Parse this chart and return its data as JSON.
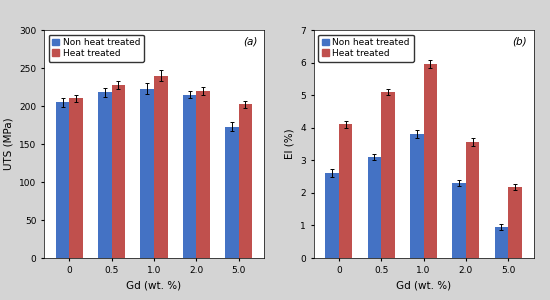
{
  "categories": [
    "0",
    "0.5",
    "1.0",
    "2.0",
    "5.0"
  ],
  "uts_non_ht": [
    205,
    218,
    223,
    215,
    173
  ],
  "uts_ht": [
    210,
    228,
    240,
    220,
    202
  ],
  "uts_err_non_ht": [
    6,
    6,
    7,
    5,
    6
  ],
  "uts_err_ht": [
    5,
    5,
    7,
    5,
    5
  ],
  "el_non_ht": [
    2.6,
    3.1,
    3.8,
    2.3,
    0.95
  ],
  "el_ht": [
    4.1,
    5.1,
    5.95,
    3.55,
    2.18
  ],
  "el_err_non_ht": [
    0.12,
    0.1,
    0.12,
    0.1,
    0.08
  ],
  "el_err_ht": [
    0.12,
    0.1,
    0.12,
    0.12,
    0.1
  ],
  "color_blue": "#4472C4",
  "color_red": "#C0504D",
  "ylabel_a": "UTS (MPa)",
  "ylabel_b": "El (%)",
  "xlabel": "Gd (wt. %)",
  "ylim_a": [
    0,
    300
  ],
  "ylim_b": [
    0,
    7
  ],
  "yticks_a": [
    0,
    50,
    100,
    150,
    200,
    250,
    300
  ],
  "yticks_b": [
    0,
    1,
    2,
    3,
    4,
    5,
    6,
    7
  ],
  "label_a": "(a)",
  "label_b": "(b)",
  "legend_non_ht": "Non heat treated",
  "legend_ht": "Heat treated",
  "bar_width": 0.32,
  "fontsize_tick": 6.5,
  "fontsize_label": 7.5,
  "fontsize_legend": 6.5,
  "fontsize_annot": 7.5,
  "bg_color": "#d4d4d4"
}
